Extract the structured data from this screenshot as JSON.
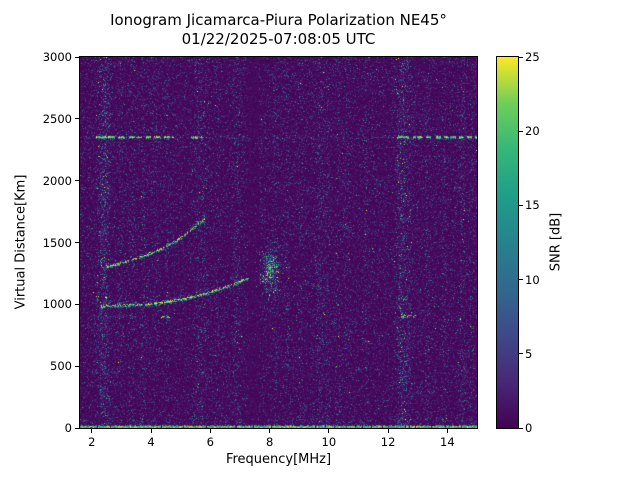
{
  "chart_data": {
    "type": "heatmap",
    "title": "Ionogram Jicamarca-Piura Polarization NE45°",
    "subtitle": "01/22/2025-07:08:05 UTC",
    "xlabel": "Frequency[MHz]",
    "ylabel": "Virtual Distance[Km]",
    "x_range": [
      1.6,
      15.0
    ],
    "y_range": [
      0,
      3000
    ],
    "x_ticks": [
      2,
      4,
      6,
      8,
      10,
      12,
      14
    ],
    "y_ticks": [
      0,
      500,
      1000,
      1500,
      2000,
      2500,
      3000
    ],
    "grid": false,
    "colorbar": {
      "label": "SNR [dB]",
      "range": [
        0,
        25
      ],
      "ticks": [
        0,
        5,
        10,
        15,
        20,
        25
      ],
      "colormap": "viridis"
    },
    "features": {
      "base_noise": {
        "count": 55000,
        "exp_scale_db": 2.6
      },
      "bottom_echo_line": {
        "y_km": 20,
        "snr_db": 22
      },
      "interference_line": {
        "y_km": 2350,
        "snr_db": 23,
        "style": "dashed",
        "segments": [
          {
            "x_mhz": [
              2.15,
              4.75
            ],
            "density": 1.0
          },
          {
            "x_mhz": [
              5.35,
              5.72
            ],
            "density": 0.6
          },
          {
            "x_mhz": [
              10.18,
              10.38
            ],
            "density": 0.5
          },
          {
            "x_mhz": [
              12.3,
              15.0
            ],
            "density": 1.0
          }
        ]
      },
      "f_trace": {
        "snr_db": 22,
        "points": [
          [
            2.3,
            985
          ],
          [
            2.8,
            990
          ],
          [
            3.3,
            995
          ],
          [
            3.8,
            1000
          ],
          [
            4.3,
            1010
          ],
          [
            4.8,
            1030
          ],
          [
            5.3,
            1055
          ],
          [
            5.8,
            1085
          ],
          [
            6.3,
            1125
          ],
          [
            6.8,
            1165
          ],
          [
            7.1,
            1195
          ],
          [
            7.3,
            1215
          ]
        ]
      },
      "second_trace": {
        "snr_db": 20,
        "points": [
          [
            2.5,
            1305
          ],
          [
            2.9,
            1330
          ],
          [
            3.4,
            1365
          ],
          [
            3.9,
            1405
          ],
          [
            4.4,
            1455
          ],
          [
            4.9,
            1520
          ],
          [
            5.3,
            1590
          ],
          [
            5.6,
            1650
          ],
          [
            5.85,
            1700
          ]
        ]
      },
      "spread_f_patch": {
        "center_mhz": 8.05,
        "center_km": 1280,
        "sigma_mhz": 0.18,
        "sigma_km": 115,
        "count": 750,
        "snr_db_scale": 6
      },
      "echo_spots": [
        {
          "x_mhz": [
            4.35,
            4.68
          ],
          "y_km": 900,
          "snr_db": 22
        },
        {
          "x_mhz": [
            12.45,
            12.95
          ],
          "y_km": 905,
          "snr_db": 21
        }
      ],
      "noise_rows": [
        {
          "y_km": 2350,
          "x_mhz": [
            1.6,
            15.0
          ],
          "count": 600,
          "scale": 3.5
        },
        {
          "y_km": 900,
          "x_mhz": [
            1.9,
            3.5
          ],
          "count": 130,
          "scale": 4.0
        },
        {
          "y_km": 450,
          "x_mhz": [
            2.0,
            2.9
          ],
          "count": 70,
          "scale": 4.5
        },
        {
          "y_km": 60,
          "x_mhz": [
            1.6,
            15.0
          ],
          "count": 260,
          "scale": 3.5
        }
      ],
      "quiet_dark_band": {
        "x_mhz": 7.45,
        "width_mhz": 0.3
      },
      "rfi_vertical_bands": [
        {
          "x_mhz": 2.38,
          "width_mhz": 0.1,
          "level": "strong"
        },
        {
          "x_mhz": 2.52,
          "width_mhz": 0.08,
          "level": "medium"
        },
        {
          "x_mhz": 2.95,
          "width_mhz": 0.06,
          "level": "weak"
        },
        {
          "x_mhz": 3.35,
          "width_mhz": 0.08,
          "level": "weak"
        },
        {
          "x_mhz": 3.75,
          "width_mhz": 0.06,
          "level": "weak"
        },
        {
          "x_mhz": 4.15,
          "width_mhz": 0.06,
          "level": "weak"
        },
        {
          "x_mhz": 4.55,
          "width_mhz": 0.06,
          "level": "weak"
        },
        {
          "x_mhz": 5.62,
          "width_mhz": 0.1,
          "level": "medium"
        },
        {
          "x_mhz": 5.85,
          "width_mhz": 0.08,
          "level": "weak"
        },
        {
          "x_mhz": 6.25,
          "width_mhz": 0.06,
          "level": "weak"
        },
        {
          "x_mhz": 6.9,
          "width_mhz": 0.08,
          "level": "medium"
        },
        {
          "x_mhz": 8.2,
          "width_mhz": 0.06,
          "level": "weak"
        },
        {
          "x_mhz": 8.6,
          "width_mhz": 0.06,
          "level": "weak"
        },
        {
          "x_mhz": 9.05,
          "width_mhz": 0.06,
          "level": "weak"
        },
        {
          "x_mhz": 9.7,
          "width_mhz": 0.1,
          "level": "medium"
        },
        {
          "x_mhz": 9.95,
          "width_mhz": 0.08,
          "level": "weak"
        },
        {
          "x_mhz": 10.3,
          "width_mhz": 0.06,
          "level": "weak"
        },
        {
          "x_mhz": 10.6,
          "width_mhz": 0.06,
          "level": "weak"
        },
        {
          "x_mhz": 11.25,
          "width_mhz": 0.06,
          "level": "weak"
        },
        {
          "x_mhz": 12.45,
          "width_mhz": 0.1,
          "level": "strong"
        },
        {
          "x_mhz": 12.7,
          "width_mhz": 0.08,
          "level": "medium"
        },
        {
          "x_mhz": 13.3,
          "width_mhz": 0.08,
          "level": "weak"
        },
        {
          "x_mhz": 13.9,
          "width_mhz": 0.06,
          "level": "weak"
        },
        {
          "x_mhz": 14.5,
          "width_mhz": 0.08,
          "level": "medium"
        },
        {
          "x_mhz": 14.85,
          "width_mhz": 0.08,
          "level": "weak"
        }
      ]
    }
  },
  "colors": {
    "background": "#ffffff",
    "text": "#000000",
    "frame": "#000000",
    "colormap_anchors": [
      "#440154",
      "#482878",
      "#3e4989",
      "#31688e",
      "#26828e",
      "#1f9e89",
      "#35b779",
      "#6ece58",
      "#fde725"
    ]
  }
}
